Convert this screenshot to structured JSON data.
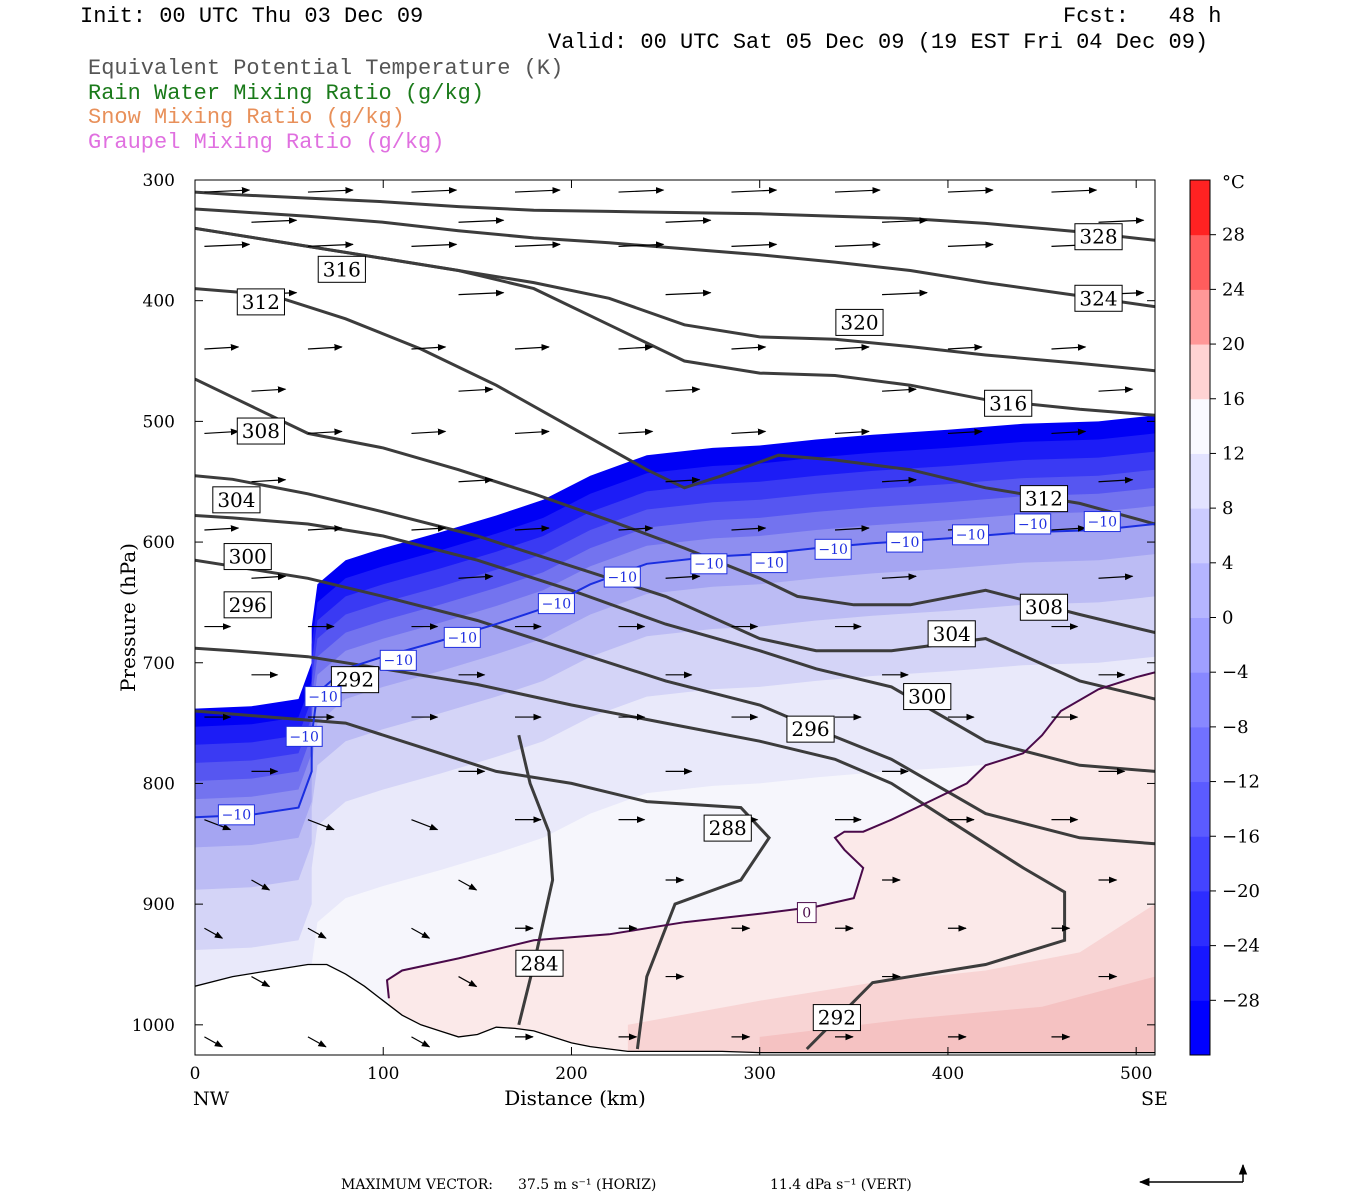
{
  "header": {
    "init": "Init: 00 UTC Thu 03 Dec 09",
    "fcst": "Fcst:   48 h",
    "valid": "Valid: 00 UTC Sat 05 Dec 09 (19 EST Fri 04 Dec 09)",
    "fields": [
      {
        "label": "Equivalent Potential Temperature (K)",
        "color": "#555555"
      },
      {
        "label": "Rain Water Mixing Ratio (g/kg)",
        "color": "#1a7a1a"
      },
      {
        "label": "Snow Mixing Ratio (g/kg)",
        "color": "#e8905a"
      },
      {
        "label": "Graupel Mixing Ratio (g/kg)",
        "color": "#e070e0"
      }
    ]
  },
  "chart_data": {
    "type": "heatmap",
    "xlabel": "Distance (km)",
    "ylabel": "Pressure (hPa)",
    "xlim": [
      0,
      510
    ],
    "ylim": [
      1025,
      300
    ],
    "x_ticks": [
      "0",
      "100",
      "200",
      "300",
      "400",
      "500"
    ],
    "y_ticks": [
      "300",
      "400",
      "500",
      "600",
      "700",
      "800",
      "900",
      "1000"
    ],
    "x_end_labels": {
      "left": "NW",
      "right": "SE"
    },
    "colorbar": {
      "unit": "°C",
      "ticks": [
        "28",
        "24",
        "20",
        "16",
        "12",
        "8",
        "4",
        "0",
        "−4",
        "−8",
        "−12",
        "−16",
        "−20",
        "−24",
        "−28"
      ],
      "cold_color": "#0000ff",
      "neutral_color": "#ffffff",
      "warm_color": "#ff2222"
    },
    "theta_e_contours": [
      {
        "value": 284,
        "x": [
          172,
          180,
          190,
          188,
          178,
          172
        ],
        "p": [
          1000,
          950,
          880,
          840,
          800,
          760
        ]
      },
      {
        "value": 288,
        "x": [
          235,
          240,
          255,
          290,
          305,
          290,
          240,
          200,
          160,
          120,
          80,
          40,
          0
        ],
        "p": [
          1020,
          960,
          900,
          880,
          845,
          820,
          815,
          800,
          790,
          770,
          750,
          745,
          740
        ]
      },
      {
        "value": 292,
        "x": [
          325,
          360,
          420,
          462,
          462,
          440,
          400,
          370,
          340,
          300,
          250,
          200,
          150,
          100,
          60,
          20,
          0
        ],
        "p": [
          1020,
          965,
          950,
          930,
          890,
          870,
          830,
          800,
          780,
          765,
          750,
          735,
          718,
          705,
          695,
          690,
          688
        ]
      },
      {
        "value": 296,
        "x": [
          510,
          470,
          420,
          370,
          330,
          300,
          250,
          200,
          150,
          100,
          60,
          20,
          0
        ],
        "p": [
          850,
          845,
          825,
          780,
          755,
          735,
          715,
          690,
          665,
          645,
          630,
          620,
          615
        ]
      },
      {
        "value": 300,
        "x": [
          510,
          470,
          420,
          370,
          330,
          300,
          250,
          200,
          150,
          100,
          60,
          20,
          0
        ],
        "p": [
          790,
          785,
          765,
          720,
          705,
          690,
          668,
          640,
          615,
          595,
          585,
          580,
          578
        ]
      },
      {
        "value": 304,
        "x": [
          510,
          470,
          420,
          370,
          330,
          300,
          250,
          200,
          150,
          100,
          60,
          20,
          0
        ],
        "p": [
          730,
          715,
          680,
          690,
          690,
          680,
          645,
          620,
          595,
          575,
          560,
          548,
          545
        ]
      },
      {
        "value": 308,
        "x": [
          510,
          470,
          420,
          380,
          350,
          320,
          300,
          260,
          220,
          180,
          140,
          100,
          60,
          20,
          0
        ],
        "p": [
          675,
          660,
          640,
          652,
          652,
          645,
          630,
          605,
          582,
          560,
          540,
          522,
          510,
          480,
          465
        ]
      },
      {
        "value": 312,
        "x": [
          510,
          470,
          420,
          380,
          340,
          310,
          280,
          260,
          240,
          200,
          160,
          120,
          80,
          40,
          0
        ],
        "p": [
          585,
          568,
          555,
          540,
          532,
          528,
          545,
          555,
          540,
          505,
          470,
          440,
          415,
          395,
          390
        ]
      },
      {
        "value": 316,
        "x": [
          510,
          470,
          420,
          380,
          340,
          300,
          260,
          220,
          180,
          140,
          100,
          60,
          20,
          0
        ],
        "p": [
          495,
          490,
          482,
          470,
          462,
          460,
          450,
          420,
          390,
          375,
          365,
          355,
          345,
          340
        ]
      },
      {
        "value": 320,
        "x": [
          510,
          470,
          420,
          380,
          340,
          300,
          260,
          220,
          180,
          140,
          100,
          60,
          20,
          0
        ],
        "p": [
          458,
          452,
          445,
          438,
          432,
          430,
          420,
          398,
          385,
          375,
          365,
          355,
          345,
          340
        ]
      },
      {
        "value": 324,
        "x": [
          510,
          470,
          420,
          380,
          340,
          300,
          260,
          220,
          180,
          140,
          100,
          60,
          20,
          0
        ],
        "p": [
          405,
          396,
          385,
          375,
          368,
          362,
          357,
          352,
          348,
          342,
          335,
          330,
          326,
          324
        ]
      },
      {
        "value": 328,
        "x": [
          510,
          470,
          420,
          380,
          340,
          300,
          260,
          220,
          180,
          140,
          100,
          60,
          20,
          0
        ],
        "p": [
          350,
          343,
          336,
          332,
          330,
          328,
          327,
          326,
          325,
          322,
          318,
          315,
          312,
          310
        ]
      }
    ],
    "theta_e_labels": [
      {
        "text": "284",
        "x": 183,
        "p": 949
      },
      {
        "text": "288",
        "x": 283,
        "p": 837
      },
      {
        "text": "292",
        "x": 341,
        "p": 994
      },
      {
        "text": "292",
        "x": 85,
        "p": 714
      },
      {
        "text": "296",
        "x": 327,
        "p": 755
      },
      {
        "text": "296",
        "x": 28,
        "p": 652
      },
      {
        "text": "300",
        "x": 389,
        "p": 728
      },
      {
        "text": "300",
        "x": 28,
        "p": 612
      },
      {
        "text": "304",
        "x": 402,
        "p": 676
      },
      {
        "text": "304",
        "x": 22,
        "p": 565
      },
      {
        "text": "308",
        "x": 451,
        "p": 654
      },
      {
        "text": "308",
        "x": 35,
        "p": 508
      },
      {
        "text": "312",
        "x": 451,
        "p": 564
      },
      {
        "text": "312",
        "x": 35,
        "p": 401
      },
      {
        "text": "316",
        "x": 432,
        "p": 485
      },
      {
        "text": "316",
        "x": 78,
        "p": 374
      },
      {
        "text": "320",
        "x": 353,
        "p": 418
      },
      {
        "text": "324",
        "x": 480,
        "p": 398
      },
      {
        "text": "328",
        "x": 480,
        "p": 347
      }
    ],
    "minus10_isotherm": {
      "value": -10,
      "x": [
        0,
        30,
        55,
        62,
        62,
        65,
        80,
        100,
        130,
        160,
        185,
        210,
        240,
        275,
        300,
        330,
        360,
        400,
        440,
        480,
        510
      ],
      "p": [
        828,
        826,
        820,
        790,
        760,
        725,
        705,
        695,
        682,
        668,
        655,
        635,
        618,
        612,
        610,
        605,
        601,
        597,
        592,
        590,
        585
      ]
    },
    "minus10_labels": [
      {
        "text": "−10",
        "x": 22,
        "p": 826
      },
      {
        "text": "−10",
        "x": 58,
        "p": 761
      },
      {
        "text": "−10",
        "x": 68,
        "p": 728
      },
      {
        "text": "−10",
        "x": 108,
        "p": 698
      },
      {
        "text": "−10",
        "x": 142,
        "p": 679
      },
      {
        "text": "−10",
        "x": 192,
        "p": 651
      },
      {
        "text": "−10",
        "x": 227,
        "p": 629
      },
      {
        "text": "−10",
        "x": 273,
        "p": 618
      },
      {
        "text": "−10",
        "x": 305,
        "p": 617
      },
      {
        "text": "−10",
        "x": 339,
        "p": 606
      },
      {
        "text": "−10",
        "x": 377,
        "p": 600
      },
      {
        "text": "−10",
        "x": 412,
        "p": 594
      },
      {
        "text": "−10",
        "x": 445,
        "p": 585
      },
      {
        "text": "−10",
        "x": 482,
        "p": 583
      }
    ],
    "zero_isotherm": {
      "value": 0,
      "x": [
        103,
        102,
        110,
        140,
        180,
        220,
        260,
        300,
        330,
        350,
        352,
        355,
        345,
        340,
        345,
        355,
        370,
        390,
        410,
        420,
        430,
        440,
        450,
        460,
        480,
        500,
        510
      ],
      "p": [
        978,
        963,
        955,
        945,
        930,
        925,
        915,
        908,
        902,
        895,
        885,
        870,
        855,
        845,
        840,
        840,
        830,
        815,
        800,
        785,
        780,
        775,
        760,
        740,
        722,
        712,
        708
      ]
    },
    "zero_labels": [
      {
        "text": "0",
        "x": 325,
        "p": 907
      }
    ],
    "terrain": {
      "x": [
        0,
        20,
        40,
        60,
        70,
        80,
        90,
        100,
        110,
        120,
        130,
        140,
        150,
        160,
        170,
        180,
        190,
        200,
        210,
        220,
        230,
        250,
        280,
        300,
        350,
        400,
        450,
        510
      ],
      "p": [
        968,
        960,
        955,
        950,
        950,
        958,
        968,
        980,
        992,
        1000,
        1005,
        1010,
        1008,
        1002,
        1003,
        1005,
        1010,
        1015,
        1018,
        1020,
        1022,
        1022,
        1022,
        1023,
        1023,
        1023,
        1023,
        1023
      ]
    },
    "wind_vector_grid": {
      "x": [
        5,
        60,
        115,
        170,
        225,
        285,
        340,
        400,
        455
      ],
      "p": [
        310,
        335,
        355,
        395,
        440,
        475,
        510,
        550,
        590,
        630,
        670,
        710,
        745,
        790,
        830,
        880,
        920,
        960,
        1010
      ]
    },
    "footer": {
      "max_vector_label": "MAXIMUM VECTOR:",
      "horiz_value": "37.5 m s⁻¹ (HORIZ)",
      "vert_value": "11.4 dPa s⁻¹ (VERT)"
    }
  }
}
